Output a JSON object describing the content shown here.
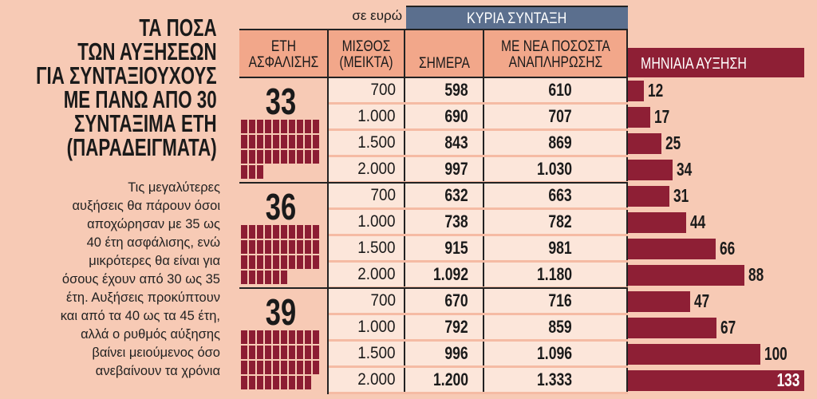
{
  "title": [
    "ΤΑ ΠΟΣΑ",
    "ΤΩΝ ΑΥΞΗΣΕΩΝ",
    "ΓΙΑ ΣΥΝΤΑΞΙΟΥΧΟΥΣ",
    "ΜΕ ΠΑΝΩ ΑΠΟ 30",
    "ΣΥΝΤΑΞΙΜΑ ΕΤΗ",
    "(ΠΑΡΑΔΕΙΓΜΑΤΑ)"
  ],
  "paragraph": [
    "Τις μεγαλύτερες",
    "αυξήσεις θα πάρουν όσοι",
    "αποχώρησαν με 35 ως",
    "40 έτη ασφάλισης, ενώ",
    "μικρότερες θα είναι για",
    "όσους έχουν από 30 ως 35",
    "έτη. Αυξήσεις προκύπτουν",
    "και από τα 40 ως τα 45 έτη,",
    "αλλά ο ρυθμός αύξησης",
    "βαίνει μειούμενος όσο",
    "ανεβαίνουν τα χρόνια"
  ],
  "unit": "σε ευρώ",
  "group_header": "ΚΥΡΙΑ ΣΥΝΤΑΞΗ",
  "headers": {
    "years": "ΕΤΗ\nΑΣΦΑΛΙΣΗΣ",
    "salary": "ΜΙΣΘΟΣ\n(ΜΕΙΚΤΑ)",
    "today": "ΣΗΜΕΡΑ",
    "new": "ΜΕ ΝΕΑ ΠΟΣΟΣΤΑ\nΑΝΑΠΛΗΡΩΣΗΣ",
    "increase": "ΜΗΝΙΑΙΑ ΑΥΞΗΣΗ"
  },
  "colors": {
    "background": "#f7cab5",
    "header": "#f2a78a",
    "blue": "#5b6f8e",
    "bar": "#8e1f35",
    "cell": "#fce6da"
  },
  "chart_data": {
    "type": "table",
    "groups": [
      {
        "years": "33",
        "pictogram_count": 33,
        "rows": [
          {
            "salary": "700",
            "today": "598",
            "new": "610",
            "increase": 12
          },
          {
            "salary": "1.000",
            "today": "690",
            "new": "707",
            "increase": 17
          },
          {
            "salary": "1.500",
            "today": "843",
            "new": "869",
            "increase": 25
          },
          {
            "salary": "2.000",
            "today": "997",
            "new": "1.030",
            "increase": 34
          }
        ]
      },
      {
        "years": "36",
        "pictogram_count": 36,
        "rows": [
          {
            "salary": "700",
            "today": "632",
            "new": "663",
            "increase": 31
          },
          {
            "salary": "1.000",
            "today": "738",
            "new": "782",
            "increase": 44
          },
          {
            "salary": "1.500",
            "today": "915",
            "new": "981",
            "increase": 66
          },
          {
            "salary": "2.000",
            "today": "1.092",
            "new": "1.180",
            "increase": 88
          }
        ]
      },
      {
        "years": "39",
        "pictogram_count": 39,
        "rows": [
          {
            "salary": "700",
            "today": "670",
            "new": "716",
            "increase": 47
          },
          {
            "salary": "1.000",
            "today": "792",
            "new": "859",
            "increase": 67
          },
          {
            "salary": "1.500",
            "today": "996",
            "new": "1.096",
            "increase": 100
          },
          {
            "salary": "2.000",
            "today": "1.200",
            "new": "1.333",
            "increase": 133
          }
        ]
      }
    ],
    "bar_series": "increase",
    "xlim": [
      0,
      133
    ]
  }
}
